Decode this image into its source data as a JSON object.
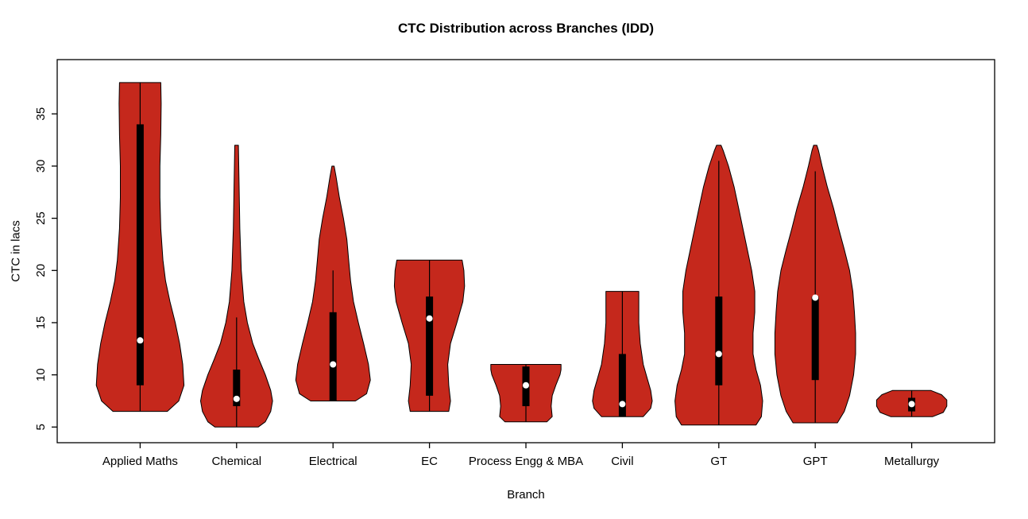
{
  "title": "CTC Distribution across Branches (IDD)",
  "chart_data": {
    "type": "violin",
    "title": "CTC Distribution across Branches (IDD)",
    "xlabel": "Branch",
    "ylabel": "CTC in lacs",
    "ylim": [
      3.5,
      40.2
    ],
    "yticks": [
      5,
      10,
      15,
      20,
      25,
      30,
      35
    ],
    "grid": false,
    "legend": "none",
    "fill_color": "#C5281C",
    "outline_color": "#000000",
    "box_color": "#000000",
    "median_dot_color": "#FFFFFF",
    "categories": [
      "Applied Maths",
      "Chemical",
      "Electrical",
      "EC",
      "Process Engg & MBA",
      "Civil",
      "GT",
      "GPT",
      "Metallurgy"
    ],
    "violins": [
      {
        "branch": "Applied Maths",
        "width": 1.0,
        "min": 6.5,
        "max": 38,
        "q1": 9,
        "q3": 34,
        "median": 13.3,
        "whisker_low": 6.5,
        "whisker_high": 38,
        "profile": [
          [
            6.5,
            0.62
          ],
          [
            7.5,
            0.88
          ],
          [
            9,
            1.0
          ],
          [
            11,
            0.97
          ],
          [
            13,
            0.9
          ],
          [
            15,
            0.8
          ],
          [
            17,
            0.68
          ],
          [
            19,
            0.58
          ],
          [
            21,
            0.52
          ],
          [
            24,
            0.47
          ],
          [
            27,
            0.45
          ],
          [
            30,
            0.45
          ],
          [
            33,
            0.47
          ],
          [
            36,
            0.48
          ],
          [
            38,
            0.47
          ]
        ]
      },
      {
        "branch": "Chemical",
        "width": 0.82,
        "min": 5,
        "max": 32,
        "q1": 7,
        "q3": 10.5,
        "median": 7.7,
        "whisker_low": 5,
        "whisker_high": 15.5,
        "profile": [
          [
            5,
            0.6
          ],
          [
            5.5,
            0.8
          ],
          [
            6.5,
            0.95
          ],
          [
            7.5,
            1.0
          ],
          [
            8.5,
            0.95
          ],
          [
            10,
            0.8
          ],
          [
            11.5,
            0.62
          ],
          [
            13,
            0.45
          ],
          [
            15,
            0.3
          ],
          [
            17,
            0.2
          ],
          [
            20,
            0.13
          ],
          [
            24,
            0.09
          ],
          [
            28,
            0.07
          ],
          [
            32,
            0.05
          ]
        ]
      },
      {
        "branch": "Electrical",
        "width": 0.85,
        "min": 7.5,
        "max": 30,
        "q1": 7.5,
        "q3": 16,
        "median": 11,
        "whisker_low": 7.5,
        "whisker_high": 20,
        "profile": [
          [
            7.5,
            0.6
          ],
          [
            8.2,
            0.9
          ],
          [
            9.5,
            1.0
          ],
          [
            11,
            0.95
          ],
          [
            13,
            0.82
          ],
          [
            15,
            0.68
          ],
          [
            17,
            0.55
          ],
          [
            19,
            0.47
          ],
          [
            21,
            0.42
          ],
          [
            23,
            0.37
          ],
          [
            25,
            0.28
          ],
          [
            27,
            0.17
          ],
          [
            29,
            0.08
          ],
          [
            30,
            0.03
          ]
        ]
      },
      {
        "branch": "EC",
        "width": 0.8,
        "min": 6.5,
        "max": 21,
        "q1": 8,
        "q3": 17.5,
        "median": 15.4,
        "whisker_low": 6.5,
        "whisker_high": 21,
        "profile": [
          [
            6.5,
            0.55
          ],
          [
            7.5,
            0.6
          ],
          [
            9,
            0.55
          ],
          [
            11,
            0.52
          ],
          [
            13,
            0.6
          ],
          [
            15,
            0.78
          ],
          [
            17,
            0.95
          ],
          [
            18.5,
            1.0
          ],
          [
            20,
            0.98
          ],
          [
            21,
            0.93
          ]
        ]
      },
      {
        "branch": "Process Engg & MBA",
        "width": 0.8,
        "min": 5.5,
        "max": 11,
        "q1": 7,
        "q3": 10.8,
        "median": 9,
        "whisker_low": 5.5,
        "whisker_high": 11,
        "profile": [
          [
            5.5,
            0.6
          ],
          [
            6,
            0.75
          ],
          [
            7,
            0.72
          ],
          [
            8,
            0.75
          ],
          [
            9,
            0.85
          ],
          [
            10,
            0.97
          ],
          [
            10.5,
            1.0
          ],
          [
            11,
            1.0
          ]
        ]
      },
      {
        "branch": "Civil",
        "width": 0.68,
        "min": 6,
        "max": 18,
        "q1": 6,
        "q3": 12,
        "median": 7.2,
        "whisker_low": 6,
        "whisker_high": 18,
        "profile": [
          [
            6,
            0.7
          ],
          [
            6.8,
            0.95
          ],
          [
            7.5,
            1.0
          ],
          [
            8.5,
            0.95
          ],
          [
            9.5,
            0.85
          ],
          [
            11,
            0.7
          ],
          [
            13,
            0.6
          ],
          [
            15,
            0.55
          ],
          [
            16.5,
            0.55
          ],
          [
            18,
            0.55
          ]
        ]
      },
      {
        "branch": "GT",
        "width": 1.0,
        "min": 5.2,
        "max": 32,
        "q1": 9,
        "q3": 17.5,
        "median": 12,
        "whisker_low": 5.2,
        "whisker_high": 30.5,
        "profile": [
          [
            5.2,
            0.85
          ],
          [
            6,
            0.97
          ],
          [
            7.5,
            1.0
          ],
          [
            9,
            0.95
          ],
          [
            10.5,
            0.85
          ],
          [
            12,
            0.78
          ],
          [
            14,
            0.78
          ],
          [
            16,
            0.82
          ],
          [
            18,
            0.82
          ],
          [
            20,
            0.75
          ],
          [
            22,
            0.65
          ],
          [
            24,
            0.55
          ],
          [
            26,
            0.45
          ],
          [
            28,
            0.35
          ],
          [
            30,
            0.22
          ],
          [
            31.5,
            0.1
          ],
          [
            32,
            0.05
          ]
        ]
      },
      {
        "branch": "GPT",
        "width": 0.92,
        "min": 5.4,
        "max": 32,
        "q1": 9.5,
        "q3": 17.5,
        "median": 17.4,
        "whisker_low": 5.4,
        "whisker_high": 29.5,
        "profile": [
          [
            5.4,
            0.55
          ],
          [
            6.5,
            0.72
          ],
          [
            8,
            0.85
          ],
          [
            10,
            0.95
          ],
          [
            12,
            1.0
          ],
          [
            14,
            1.0
          ],
          [
            16,
            0.97
          ],
          [
            18,
            0.93
          ],
          [
            20,
            0.85
          ],
          [
            22,
            0.72
          ],
          [
            24,
            0.58
          ],
          [
            26,
            0.45
          ],
          [
            28,
            0.3
          ],
          [
            30,
            0.17
          ],
          [
            31.5,
            0.08
          ],
          [
            32,
            0.04
          ]
        ]
      },
      {
        "branch": "Metallurgy",
        "width": 0.8,
        "min": 6,
        "max": 8.5,
        "q1": 6.5,
        "q3": 7.8,
        "median": 7.2,
        "whisker_low": 6,
        "whisker_high": 8.5,
        "profile": [
          [
            6,
            0.6
          ],
          [
            6.4,
            0.9
          ],
          [
            7,
            1.0
          ],
          [
            7.6,
            1.0
          ],
          [
            8.1,
            0.85
          ],
          [
            8.5,
            0.55
          ]
        ]
      }
    ]
  }
}
